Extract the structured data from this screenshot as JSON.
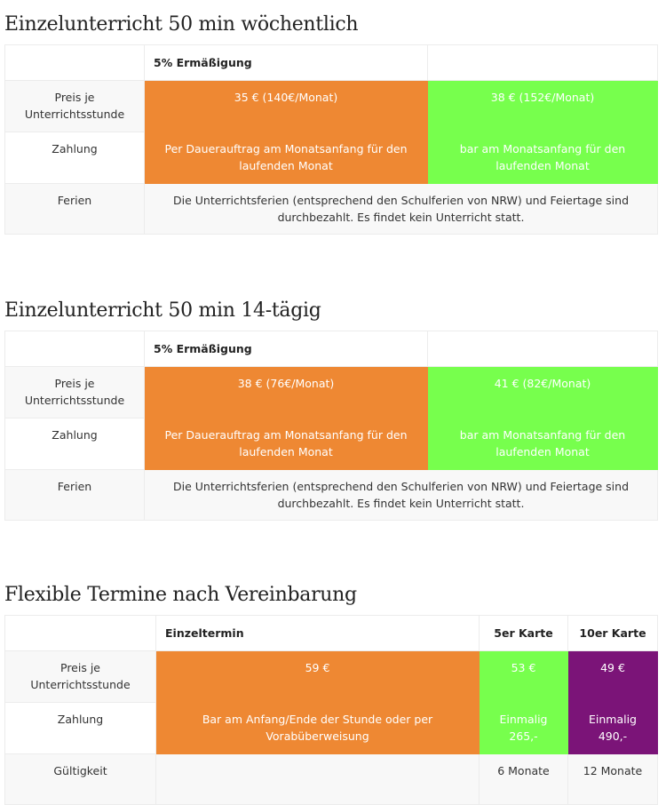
{
  "colors": {
    "orange": "#ee8833",
    "green": "#77ff4d",
    "purple": "#7b1478"
  },
  "sections": [
    {
      "title": "Einzelunterricht 50 min wöchentlich",
      "headers": [
        "",
        "5% Ermäßigung",
        ""
      ],
      "rows": [
        {
          "label": "Preis je Unterrichtsstunde",
          "cells": [
            "35 € (140€/Monat)",
            "38 € (152€/Monat)"
          ]
        },
        {
          "label": "Zahlung",
          "cells": [
            "Per Dauerauftrag am Monatsanfang für den laufenden Monat",
            "bar am Monatsanfang für den laufenden Monat"
          ]
        },
        {
          "label": "Ferien",
          "cells": [
            "Die Unterrichtsferien (entsprechend den Schulferien von NRW) und Feiertage sind durchbezahlt. Es findet kein Unterricht statt."
          ]
        }
      ]
    },
    {
      "title": "Einzelunterricht 50 min 14-tägig",
      "headers": [
        "",
        "5% Ermäßigung",
        ""
      ],
      "rows": [
        {
          "label": "Preis je Unterrichtsstunde",
          "cells": [
            "38 € (76€/Monat)",
            "41 € (82€/Monat)"
          ]
        },
        {
          "label": "Zahlung",
          "cells": [
            "Per Dauerauftrag am Monatsanfang für den laufenden Monat",
            "bar am Monatsanfang für den laufenden Monat"
          ]
        },
        {
          "label": "Ferien",
          "cells": [
            "Die Unterrichtsferien (entsprechend den Schulferien von NRW) und Feiertage sind durchbezahlt. Es findet kein Unterricht statt."
          ]
        }
      ]
    },
    {
      "title": "Flexible Termine nach Vereinbarung",
      "headers": [
        "",
        "Einzeltermin",
        "5er Karte",
        "10er Karte"
      ],
      "rows": [
        {
          "label": "Preis je Unterrichtsstunde",
          "cells": [
            "59 €",
            "53 €",
            "49 €"
          ]
        },
        {
          "label": "Zahlung",
          "cells": [
            "Bar am Anfang/Ende der Stunde oder per Vorabüberweisung",
            "Einmalig 265,-",
            "Einmalig 490,-"
          ]
        },
        {
          "label": "Gültigkeit",
          "cells": [
            "",
            "6 Monate",
            "12 Monate"
          ]
        }
      ]
    }
  ]
}
